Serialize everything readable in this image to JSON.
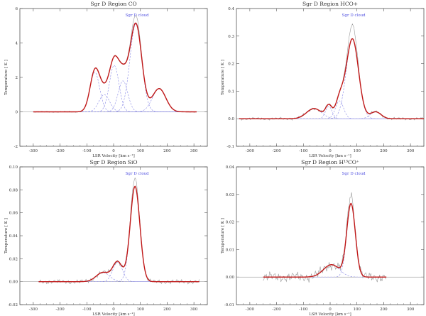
{
  "colors": {
    "data": "#9a9a9a",
    "fit": "#c01818",
    "components": "#8a8ae6",
    "annotation": "#5050e0",
    "axes": "#555555",
    "zero_line": "#888888"
  },
  "chart_data": [
    {
      "type": "line",
      "title": "Sgr D Region CO",
      "xlabel": "LSR Velocity [km s⁻¹]",
      "ylabel": "Temperature [ K ]",
      "annotation": "Sgr D cloud",
      "xlim": [
        -350,
        350
      ],
      "ylim": [
        -2,
        6
      ],
      "xticks": [
        -300,
        -200,
        -100,
        0,
        100,
        200,
        300
      ],
      "yticks": [
        -2,
        0,
        2,
        4,
        6
      ],
      "data_range": [
        -300,
        310
      ],
      "data_peak": 5.6,
      "noise": 0.03,
      "components": [
        {
          "center": -70,
          "amp": 2.3,
          "sigma": 18
        },
        {
          "center": -35,
          "amp": 1.0,
          "sigma": 20
        },
        {
          "center": 2,
          "amp": 2.7,
          "sigma": 18
        },
        {
          "center": 35,
          "amp": 1.8,
          "sigma": 18
        },
        {
          "center": 83,
          "amp": 5.1,
          "sigma": 22
        },
        {
          "center": 170,
          "amp": 1.35,
          "sigma": 25
        }
      ]
    },
    {
      "type": "line",
      "title": "Sgr D Region HCO+",
      "xlabel": "LSR Velocity [km s⁻¹]",
      "ylabel": "Temperature [ K ]",
      "annotation": "Sgr D cloud",
      "xlim": [
        -350,
        350
      ],
      "ylim": [
        -0.1,
        0.4
      ],
      "xticks": [
        -300,
        -200,
        -100,
        0,
        100,
        200,
        300
      ],
      "yticks": [
        -0.1,
        0.0,
        0.1,
        0.2,
        0.3,
        0.4
      ],
      "data_range": [
        -340,
        350
      ],
      "data_peak": 0.34,
      "noise": 0.004,
      "components": [
        {
          "center": -60,
          "amp": 0.037,
          "sigma": 28
        },
        {
          "center": -5,
          "amp": 0.045,
          "sigma": 12
        },
        {
          "center": 35,
          "amp": 0.065,
          "sigma": 15
        },
        {
          "center": 83,
          "amp": 0.29,
          "sigma": 23
        },
        {
          "center": 170,
          "amp": 0.025,
          "sigma": 20
        }
      ]
    },
    {
      "type": "line",
      "title": "Sgr D Region SiO",
      "xlabel": "LSR Velocity [km s⁻¹]",
      "ylabel": "Temperature [ K ]",
      "annotation": "Sgr D cloud",
      "xlim": [
        -350,
        350
      ],
      "ylim": [
        -0.02,
        0.1
      ],
      "xticks": [
        -300,
        -200,
        -100,
        0,
        100,
        200,
        300
      ],
      "yticks": [
        -0.02,
        0.0,
        0.02,
        0.04,
        0.06,
        0.08,
        0.1
      ],
      "data_range": [
        -280,
        320
      ],
      "data_peak": 0.09,
      "noise": 0.0015,
      "components": [
        {
          "center": -40,
          "amp": 0.008,
          "sigma": 25
        },
        {
          "center": 15,
          "amp": 0.017,
          "sigma": 18
        },
        {
          "center": 80,
          "amp": 0.083,
          "sigma": 18
        }
      ]
    },
    {
      "type": "line",
      "title": "Sgr D Region H¹³CO⁺",
      "xlabel": "LSR Velocity [km s⁻¹]",
      "ylabel": "Temperature [ K ]",
      "annotation": "Sgr D cloud",
      "xlim": [
        -350,
        350
      ],
      "ylim": [
        -0.01,
        0.04
      ],
      "xticks": [
        -300,
        -200,
        -100,
        0,
        100,
        200,
        300
      ],
      "yticks": [
        -0.01,
        0.0,
        0.01,
        0.02,
        0.03,
        0.04
      ],
      "data_range": [
        -250,
        210
      ],
      "data_peak": 0.03,
      "noise": 0.0015,
      "components": [
        {
          "center": 5,
          "amp": 0.0045,
          "sigma": 30
        },
        {
          "center": 78,
          "amp": 0.0265,
          "sigma": 16
        }
      ]
    }
  ]
}
